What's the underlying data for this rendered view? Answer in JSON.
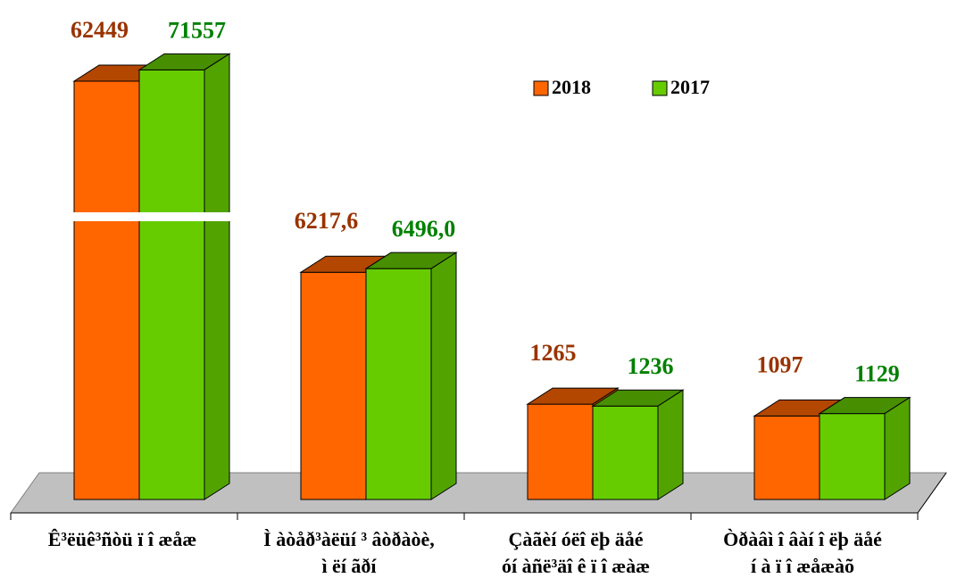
{
  "chart_data": {
    "type": "bar3d",
    "categories": [
      "Ê³ëüê³ñòü ï î æåæ",
      "Ì àòåð³àëüí ³ âòðàòè,\nì ëí ãðí",
      "Çàãèí óëî ëþ äåé\nóí àñë³äî ê ï î æàæ",
      "Òðàâì î âàí î ëþ äåé\ní à ï î æåæàõ"
    ],
    "series": [
      {
        "name": "2018",
        "color": "#ff6600",
        "label_color": "#993300",
        "values": [
          62449,
          6217.6,
          1265,
          1097
        ],
        "value_labels": [
          "62449",
          "6217,6",
          "1265",
          "1097"
        ]
      },
      {
        "name": "2017",
        "color": "#66cc00",
        "label_color": "#008000",
        "values": [
          71557,
          6496.0,
          1236,
          1129
        ],
        "value_labels": [
          "71557",
          "6496,0",
          "1236",
          "1129"
        ]
      }
    ],
    "log_scale": true,
    "ylim": [
      400,
      80000
    ],
    "legend": "top-right"
  }
}
